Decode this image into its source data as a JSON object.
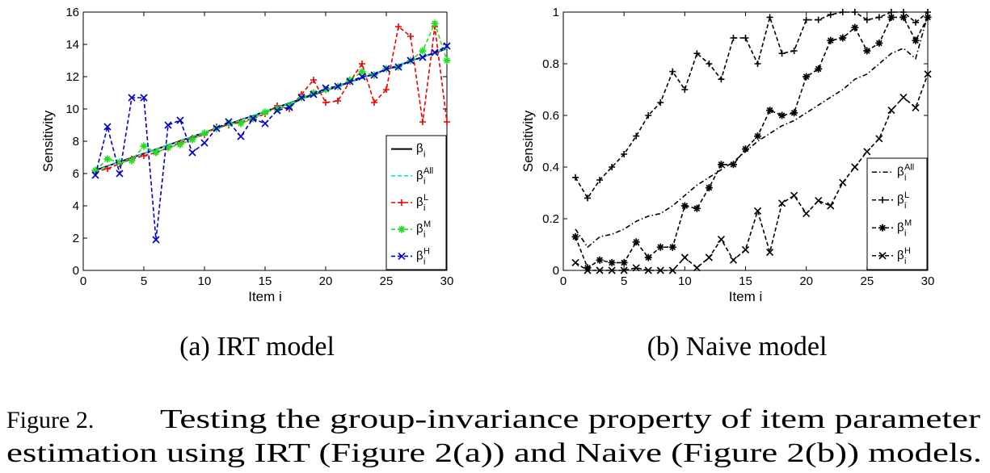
{
  "caption": {
    "label": "Figure 2.",
    "line1": "Testing the group-invariance property of item parameter",
    "line2": "estimation using IRT (Figure 2(a)) and Naive (Figure 2(b)) models."
  },
  "chart_data": [
    {
      "type": "line",
      "subcaption": "(a)  IRT model",
      "xlabel": "Item i",
      "ylabel": "Sensitivity",
      "xlim": [
        0,
        30
      ],
      "ylim": [
        0,
        16
      ],
      "xticks": [
        0,
        5,
        10,
        15,
        20,
        25,
        30
      ],
      "yticks": [
        0,
        2,
        4,
        6,
        8,
        10,
        12,
        14,
        16
      ],
      "grid": false,
      "legend_position": "bottom-right",
      "x": [
        1,
        2,
        3,
        4,
        5,
        6,
        7,
        8,
        9,
        10,
        11,
        12,
        13,
        14,
        15,
        16,
        17,
        18,
        19,
        20,
        21,
        22,
        23,
        24,
        25,
        26,
        27,
        28,
        29,
        30
      ],
      "series": [
        {
          "name": "β_i",
          "legend_base": "β",
          "legend_sub": "i",
          "legend_sup": "",
          "color": "#000000",
          "style": "solid",
          "marker": "none",
          "values": [
            6.2,
            6.46,
            6.72,
            6.98,
            7.24,
            7.5,
            7.76,
            8.02,
            8.28,
            8.54,
            8.8,
            9.06,
            9.32,
            9.58,
            9.84,
            10.1,
            10.36,
            10.62,
            10.88,
            11.14,
            11.4,
            11.66,
            11.92,
            12.18,
            12.44,
            12.7,
            12.96,
            13.22,
            13.48,
            13.74
          ]
        },
        {
          "name": "β_i^All",
          "legend_base": "β",
          "legend_sub": "i",
          "legend_sup": "All",
          "color": "#00e5ee",
          "style": "dashed",
          "marker": "none",
          "values": [
            6.15,
            6.45,
            6.7,
            6.95,
            7.25,
            7.5,
            7.75,
            8.0,
            8.3,
            8.55,
            8.8,
            9.05,
            9.3,
            9.6,
            9.85,
            10.1,
            10.35,
            10.6,
            10.9,
            11.15,
            11.4,
            11.65,
            11.9,
            12.2,
            12.45,
            12.7,
            12.95,
            13.2,
            13.5,
            13.75
          ]
        },
        {
          "name": "β_i^L",
          "legend_base": "β",
          "legend_sub": "i",
          "legend_sup": "L",
          "color": "#ee0000",
          "style": "dashed",
          "marker": "plus",
          "values": [
            6.1,
            6.3,
            6.6,
            6.9,
            7.1,
            7.3,
            7.6,
            7.9,
            8.2,
            8.4,
            8.9,
            9.0,
            9.2,
            9.4,
            9.7,
            10.2,
            10.0,
            10.9,
            11.8,
            10.4,
            10.5,
            11.7,
            12.8,
            10.4,
            11.2,
            15.1,
            14.5,
            9.2,
            15.1,
            9.2
          ]
        },
        {
          "name": "β_i^M",
          "legend_base": "β",
          "legend_sub": "i",
          "legend_sup": "M",
          "color": "#22dd22",
          "style": "dashed",
          "marker": "star",
          "values": [
            6.2,
            6.9,
            6.7,
            6.8,
            7.7,
            7.3,
            7.6,
            7.8,
            8.1,
            8.5,
            8.8,
            9.1,
            9.1,
            9.4,
            9.8,
            10.0,
            10.2,
            10.7,
            11.0,
            11.2,
            11.4,
            11.8,
            12.3,
            12.1,
            12.5,
            12.6,
            13.0,
            13.6,
            15.3,
            13.0
          ]
        },
        {
          "name": "β_i^H",
          "legend_base": "β",
          "legend_sub": "i",
          "legend_sup": "H",
          "color": "#0000cc",
          "style": "dashed",
          "marker": "x",
          "values": [
            5.9,
            8.9,
            6.0,
            10.7,
            10.7,
            1.9,
            9.0,
            9.3,
            7.3,
            7.9,
            8.8,
            9.2,
            8.3,
            9.4,
            9.1,
            9.9,
            10.1,
            10.7,
            10.9,
            11.3,
            11.4,
            11.7,
            12.0,
            12.1,
            12.5,
            12.6,
            13.0,
            13.2,
            13.5,
            13.9
          ]
        }
      ]
    },
    {
      "type": "line",
      "subcaption": "(b)  Naive model",
      "xlabel": "Item i",
      "ylabel": "Sensitivity",
      "xlim": [
        0,
        30
      ],
      "ylim": [
        0,
        1
      ],
      "xticks": [
        0,
        5,
        10,
        15,
        20,
        25,
        30
      ],
      "yticks": [
        0,
        0.2,
        0.4,
        0.6,
        0.8,
        1
      ],
      "grid": false,
      "legend_position": "bottom-right",
      "x": [
        1,
        2,
        3,
        4,
        5,
        6,
        7,
        8,
        9,
        10,
        11,
        12,
        13,
        14,
        15,
        16,
        17,
        18,
        19,
        20,
        21,
        22,
        23,
        24,
        25,
        26,
        27,
        28,
        29,
        30
      ],
      "series": [
        {
          "name": "β_i^All",
          "legend_base": "β",
          "legend_sub": "i",
          "legend_sup": "All",
          "color": "#000000",
          "style": "dashdot",
          "marker": "none",
          "values": [
            0.16,
            0.09,
            0.13,
            0.14,
            0.16,
            0.19,
            0.21,
            0.22,
            0.25,
            0.29,
            0.33,
            0.36,
            0.39,
            0.42,
            0.46,
            0.5,
            0.53,
            0.56,
            0.58,
            0.61,
            0.64,
            0.67,
            0.7,
            0.74,
            0.76,
            0.8,
            0.84,
            0.86,
            0.82,
            0.99
          ]
        },
        {
          "name": "β_i^L",
          "legend_base": "β",
          "legend_sub": "i",
          "legend_sup": "L",
          "color": "#000000",
          "style": "dashed",
          "marker": "plus",
          "values": [
            0.36,
            0.28,
            0.35,
            0.4,
            0.45,
            0.52,
            0.6,
            0.65,
            0.77,
            0.7,
            0.84,
            0.8,
            0.74,
            0.9,
            0.9,
            0.8,
            0.98,
            0.84,
            0.85,
            0.97,
            0.97,
            0.99,
            1.0,
            1.0,
            0.97,
            0.98,
            1.0,
            1.0,
            0.96,
            1.0
          ]
        },
        {
          "name": "β_i^M",
          "legend_base": "β",
          "legend_sub": "i",
          "legend_sup": "M",
          "color": "#000000",
          "style": "dashed",
          "marker": "star",
          "values": [
            0.13,
            0.01,
            0.04,
            0.03,
            0.03,
            0.11,
            0.05,
            0.09,
            0.09,
            0.25,
            0.24,
            0.32,
            0.41,
            0.41,
            0.47,
            0.52,
            0.62,
            0.6,
            0.61,
            0.75,
            0.78,
            0.89,
            0.9,
            0.94,
            0.85,
            0.88,
            0.98,
            0.98,
            0.89,
            0.98
          ]
        },
        {
          "name": "β_i^H",
          "legend_base": "β",
          "legend_sub": "i",
          "legend_sup": "H",
          "color": "#000000",
          "style": "dashed",
          "marker": "x",
          "values": [
            0.03,
            0.0,
            0.0,
            0.0,
            0.0,
            0.01,
            0.0,
            0.0,
            0.0,
            0.05,
            0.01,
            0.05,
            0.12,
            0.04,
            0.08,
            0.23,
            0.07,
            0.26,
            0.29,
            0.22,
            0.27,
            0.25,
            0.34,
            0.4,
            0.46,
            0.51,
            0.62,
            0.67,
            0.63,
            0.76
          ]
        }
      ]
    }
  ]
}
